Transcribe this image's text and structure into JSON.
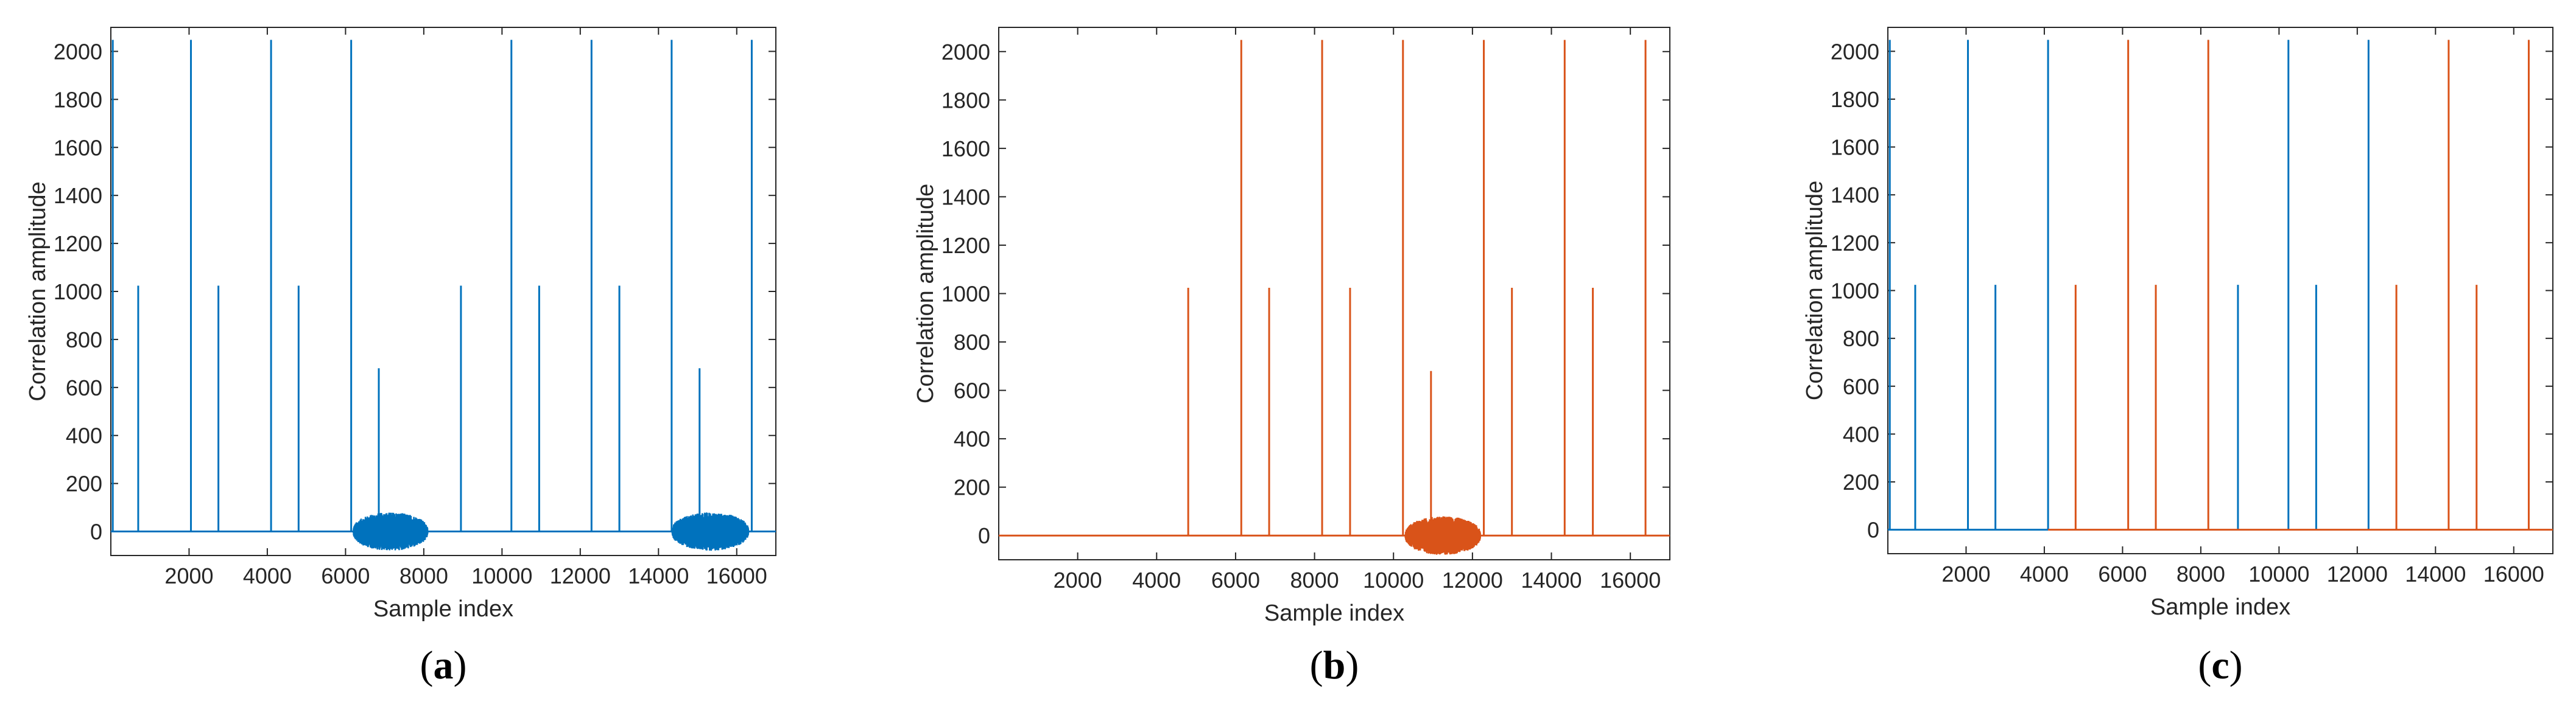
{
  "chart_data": [
    {
      "type": "line",
      "panel": "a",
      "xlabel": "Sample index",
      "ylabel": "Correlation amplitude",
      "xlim": [
        0,
        17000
      ],
      "ylim": [
        -100,
        2100
      ],
      "xticks": [
        2000,
        4000,
        6000,
        8000,
        10000,
        12000,
        14000,
        16000
      ],
      "yticks": [
        0,
        200,
        400,
        600,
        800,
        1000,
        1200,
        1400,
        1600,
        1800,
        2000
      ],
      "series": [
        {
          "color": "#0072BD",
          "baseline": 0,
          "peaks": [
            {
              "x": 50,
              "y": 2048
            },
            {
              "x": 700,
              "y": 1024
            },
            {
              "x": 2048,
              "y": 2048
            },
            {
              "x": 2750,
              "y": 1024
            },
            {
              "x": 4096,
              "y": 2048
            },
            {
              "x": 4800,
              "y": 1024
            },
            {
              "x": 6144,
              "y": 2048
            },
            {
              "x": 6850,
              "y": 680
            },
            {
              "x": 8950,
              "y": 1024
            },
            {
              "x": 10240,
              "y": 2048
            },
            {
              "x": 10950,
              "y": 1024
            },
            {
              "x": 12288,
              "y": 2048
            },
            {
              "x": 13000,
              "y": 1024
            },
            {
              "x": 14336,
              "y": 2048
            },
            {
              "x": 15050,
              "y": 680
            },
            {
              "x": 16384,
              "y": 2048
            }
          ],
          "noise_bursts": [
            {
              "x_start": 6200,
              "x_end": 8100,
              "amplitude": 80
            },
            {
              "x_start": 14350,
              "x_end": 16300,
              "amplitude": 80
            }
          ]
        }
      ]
    },
    {
      "type": "line",
      "panel": "b",
      "xlabel": "Sample index",
      "ylabel": "Correlation amplitude",
      "xlim": [
        0,
        17000
      ],
      "ylim": [
        -100,
        2100
      ],
      "xticks": [
        2000,
        4000,
        6000,
        8000,
        10000,
        12000,
        14000,
        16000
      ],
      "yticks": [
        0,
        200,
        400,
        600,
        800,
        1000,
        1200,
        1400,
        1600,
        1800,
        2000
      ],
      "series": [
        {
          "color": "#D95319",
          "baseline": 0,
          "peaks": [
            {
              "x": 4800,
              "y": 1024
            },
            {
              "x": 6144,
              "y": 2048
            },
            {
              "x": 6850,
              "y": 1024
            },
            {
              "x": 8192,
              "y": 2048
            },
            {
              "x": 8900,
              "y": 1024
            },
            {
              "x": 10240,
              "y": 2048
            },
            {
              "x": 10950,
              "y": 680
            },
            {
              "x": 12288,
              "y": 2048
            },
            {
              "x": 13000,
              "y": 1024
            },
            {
              "x": 14336,
              "y": 2048
            },
            {
              "x": 15050,
              "y": 1024
            },
            {
              "x": 16384,
              "y": 2048
            }
          ],
          "noise_bursts": [
            {
              "x_start": 10300,
              "x_end": 12200,
              "amplitude": 80
            }
          ]
        }
      ]
    },
    {
      "type": "line",
      "panel": "c",
      "xlabel": "Sample index",
      "ylabel": "Correlation amplitude",
      "xlim": [
        0,
        17000
      ],
      "ylim": [
        -100,
        2100
      ],
      "xticks": [
        2000,
        4000,
        6000,
        8000,
        10000,
        12000,
        14000,
        16000
      ],
      "yticks": [
        0,
        200,
        400,
        600,
        800,
        1000,
        1200,
        1400,
        1600,
        1800,
        2000
      ],
      "series": [
        {
          "color": "#0072BD",
          "baseline": 0,
          "baseline_range": [
            0,
            4096
          ],
          "peaks": [
            {
              "x": 50,
              "y": 2048
            },
            {
              "x": 700,
              "y": 1024
            },
            {
              "x": 2048,
              "y": 2048
            },
            {
              "x": 2750,
              "y": 1024
            },
            {
              "x": 4096,
              "y": 2048
            },
            {
              "x": 8950,
              "y": 1024
            },
            {
              "x": 10240,
              "y": 2048
            },
            {
              "x": 10950,
              "y": 1024
            },
            {
              "x": 12288,
              "y": 2048
            }
          ],
          "noise_bursts": []
        },
        {
          "color": "#D95319",
          "baseline": 0,
          "baseline_range": [
            4096,
            17000
          ],
          "peaks": [
            {
              "x": 4800,
              "y": 1024
            },
            {
              "x": 6144,
              "y": 2048
            },
            {
              "x": 6850,
              "y": 1024
            },
            {
              "x": 8192,
              "y": 2048
            },
            {
              "x": 13000,
              "y": 1024
            },
            {
              "x": 14336,
              "y": 2048
            },
            {
              "x": 15050,
              "y": 1024
            },
            {
              "x": 16384,
              "y": 2048
            }
          ],
          "noise_bursts": []
        }
      ]
    }
  ],
  "panel_labels": [
    {
      "open": "(",
      "letter": "a",
      "close": ")"
    },
    {
      "open": "(",
      "letter": "b",
      "close": ")"
    },
    {
      "open": "(",
      "letter": "c",
      "close": ")"
    }
  ]
}
